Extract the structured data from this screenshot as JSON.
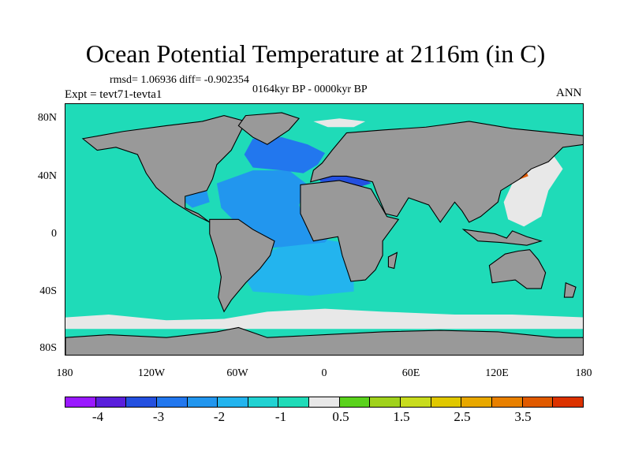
{
  "title": "Ocean Potential Temperature at 2116m (in C)",
  "stats": "rmsd= 1.06936 diff= -0.902354",
  "period": "0164kyr BP - 0000kyr BP",
  "experiment": "Expt = tevt71-tevta1",
  "season": "ANN",
  "y_axis": [
    "80N",
    "40N",
    "0",
    "40S",
    "80S"
  ],
  "x_axis": [
    "180",
    "120W",
    "60W",
    "0",
    "60E",
    "120E",
    "180"
  ],
  "colors": {
    "land": "#999999",
    "ocean_default": "#1fdbb8",
    "coastline": "#000000"
  },
  "colorbar": {
    "colors": [
      "#9a19ff",
      "#5a1fdc",
      "#2450e0",
      "#2277ee",
      "#2296ee",
      "#23b4ee",
      "#21d2d2",
      "#1fdbb8",
      "#e8e8e8",
      "#5ad21c",
      "#a0d21c",
      "#c8dc1e",
      "#e0c800",
      "#e8a800",
      "#e88000",
      "#e05a00",
      "#dc3200"
    ],
    "labels": [
      "-4",
      "-3",
      "-2",
      "-1",
      "0.5",
      "1.5",
      "2.5",
      "3.5"
    ]
  },
  "chart_data": {
    "type": "heatmap",
    "title": "Ocean Potential Temperature at 2116m (in C)",
    "projection": "cylindrical equidistant",
    "lon_range": [
      -180,
      180
    ],
    "lat_range": [
      -90,
      90
    ],
    "color_levels": [
      -4.5,
      -4,
      -3.5,
      -3,
      -2.5,
      -2,
      -1.5,
      -1,
      -0.5,
      0.5,
      1,
      1.5,
      2,
      2.5,
      3,
      3.5,
      4
    ],
    "regions": [
      {
        "name": "Pacific / Indian / Southern Ocean background",
        "value": -0.9
      },
      {
        "name": "North Atlantic",
        "value": -2.3
      },
      {
        "name": "Central Atlantic",
        "value": -1.8
      },
      {
        "name": "South Atlantic",
        "value": -1.4
      },
      {
        "name": "Antarctic margin",
        "value": 0.2
      },
      {
        "name": "Arctic patch",
        "value": 0.2
      },
      {
        "name": "NW Pacific marginal seas",
        "value": 0.2
      },
      {
        "name": "Sea of Japan",
        "value": 3.8
      },
      {
        "name": "Mediterranean",
        "value": -2.8
      }
    ]
  }
}
